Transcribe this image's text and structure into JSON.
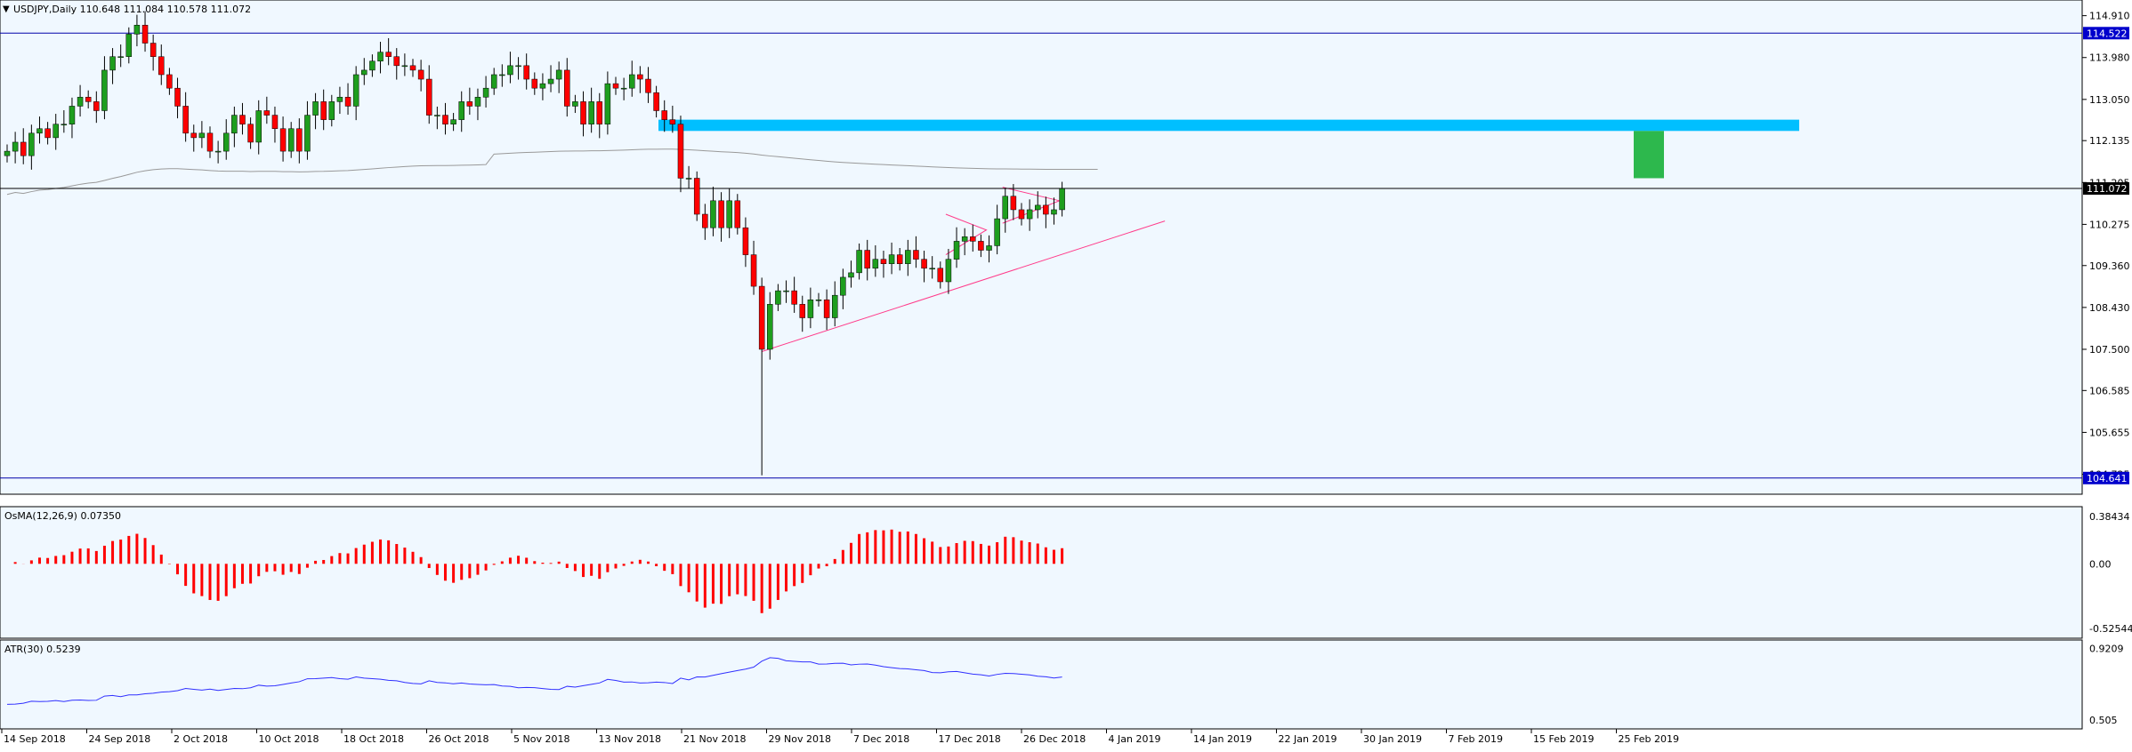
{
  "colors": {
    "background": "#f0f8ff",
    "frame": "#000000",
    "bull": "#1e9e1e",
    "bear": "#ff0000",
    "wick": "#000000",
    "ma": "#999999",
    "zone": "#00bfff",
    "target": "#2db84d",
    "trend": "#ff3b8a",
    "level": "#0000aa",
    "label_box": "#0000cc",
    "label_text": "#ffffff",
    "osma": "#ff0000",
    "atr": "#3030ff",
    "text": "#000000"
  },
  "chart_data": [
    {
      "type": "candlestick",
      "title": "USDJPY,Daily  110.648 111.084 110.578 111.072",
      "symbol": "USDJPY",
      "timeframe": "Daily",
      "ohlc_label": "110.648 111.084 110.578 111.072",
      "ylim": [
        104.4,
        115.1
      ],
      "y_ticks": [
        "114.910",
        "113.980",
        "113.050",
        "112.135",
        "111.205",
        "110.275",
        "109.360",
        "108.430",
        "107.500",
        "106.585",
        "105.655",
        "104.725"
      ],
      "price_tags": [
        {
          "value": 114.522,
          "label": "114.522",
          "kind": "line"
        },
        {
          "value": 111.072,
          "label": "111.072",
          "kind": "current"
        },
        {
          "value": 104.641,
          "label": "104.641",
          "kind": "line"
        }
      ],
      "x_labels": [
        "14 Sep 2018",
        "24 Sep 2018",
        "2 Oct 2018",
        "10 Oct 2018",
        "18 Oct 2018",
        "26 Oct 2018",
        "5 Nov 2018",
        "13 Nov 2018",
        "21 Nov 2018",
        "29 Nov 2018",
        "7 Dec 2018",
        "17 Dec 2018",
        "26 Dec 2018",
        "4 Jan 2019",
        "14 Jan 2019",
        "22 Jan 2019",
        "30 Jan 2019",
        "7 Feb 2019",
        "15 Feb 2019",
        "25 Feb 2019"
      ],
      "closes": [
        111.9,
        112.1,
        111.8,
        112.3,
        112.4,
        112.2,
        112.5,
        112.5,
        112.9,
        113.1,
        113.0,
        112.8,
        113.7,
        114.0,
        114.0,
        114.5,
        114.7,
        114.3,
        114.0,
        113.6,
        113.3,
        112.9,
        112.3,
        112.2,
        112.3,
        111.9,
        111.9,
        112.3,
        112.7,
        112.5,
        112.1,
        112.8,
        112.7,
        112.4,
        111.9,
        112.4,
        111.9,
        112.7,
        113.0,
        112.6,
        113.0,
        113.1,
        112.9,
        113.6,
        113.7,
        113.9,
        114.1,
        114.0,
        113.8,
        113.8,
        113.7,
        113.5,
        112.7,
        112.7,
        112.5,
        112.6,
        113.0,
        112.9,
        113.1,
        113.3,
        113.6,
        113.6,
        113.8,
        113.8,
        113.5,
        113.3,
        113.4,
        113.5,
        113.7,
        112.9,
        113.0,
        112.5,
        113.0,
        112.5,
        113.4,
        113.3,
        113.3,
        113.6,
        113.5,
        113.2,
        112.8,
        112.6,
        112.5,
        111.3,
        111.3,
        110.5,
        110.2,
        110.8,
        110.2,
        110.8,
        110.2,
        109.6,
        108.9,
        107.5,
        108.5,
        108.8,
        108.8,
        108.5,
        108.2,
        108.6,
        108.6,
        108.2,
        108.7,
        109.1,
        109.2,
        109.7,
        109.3,
        109.5,
        109.4,
        109.6,
        109.4,
        109.7,
        109.5,
        109.3,
        109.3,
        109.0,
        109.5,
        109.9,
        110.0,
        109.9,
        109.7,
        109.8,
        110.4,
        110.9,
        110.6,
        110.4,
        110.6,
        110.7,
        110.5,
        110.6,
        111.07
      ],
      "ma_label": "MA",
      "series_osma": {
        "name": "OsMA(12,26,9)",
        "value": "0.07350",
        "ylim": [
          -0.56,
          0.42
        ],
        "y_ticks": [
          "0.38434",
          "0.00",
          "-0.52544"
        ]
      },
      "series_atr": {
        "name": "ATR(30)",
        "value": "0.5239",
        "ylim": [
          0.48,
          0.94
        ],
        "y_ticks": [
          "0.9209",
          "0.505"
        ]
      },
      "grid": false
    }
  ]
}
